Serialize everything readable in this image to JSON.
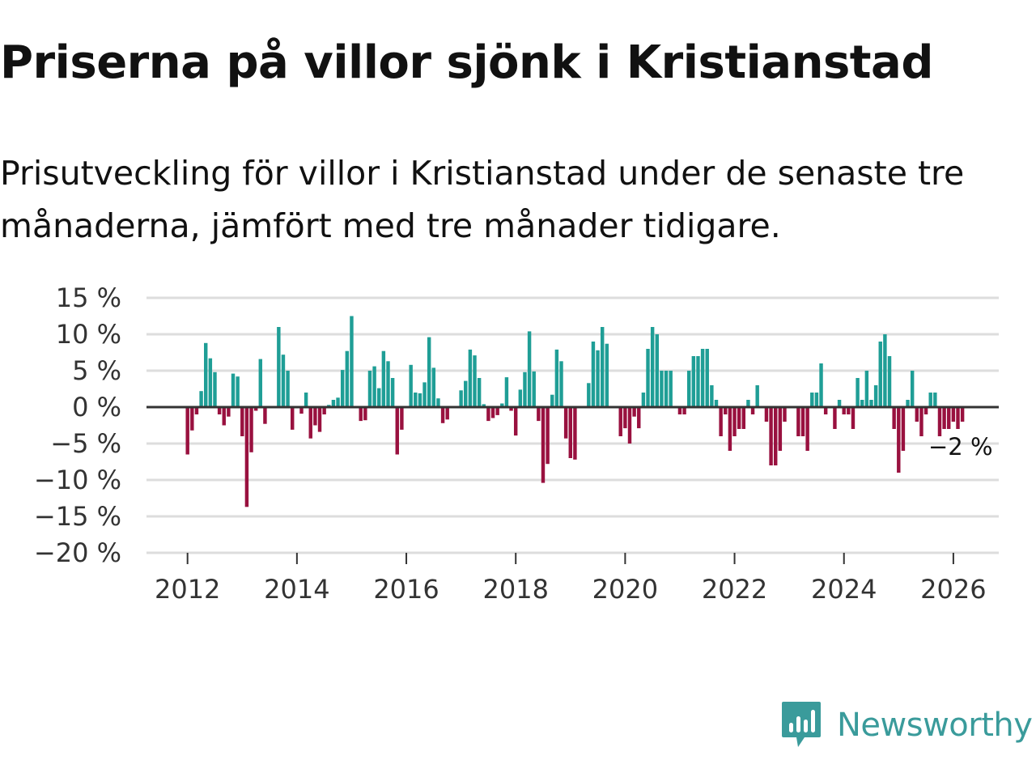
{
  "title": "Priserna på villor sjönk i Kristianstad",
  "subtitle": "Prisutveckling för villor i Kristianstad under de senaste tre månaderna, jämfört med tre månader tidigare.",
  "logo": {
    "text": "Newsworthy",
    "icon": "newsworthy-logo-icon"
  },
  "colors": {
    "positive": "#1f9e96",
    "negative": "#99113f",
    "grid": "#dddddd",
    "zero": "#333333",
    "text": "#333333",
    "brand": "#3a9b9b"
  },
  "chart_data": {
    "type": "bar",
    "title": "Priserna på villor sjönk i Kristianstad",
    "xlabel": "",
    "ylabel": "",
    "ylim": [
      -20,
      15
    ],
    "xlim": [
      2011.25,
      2026.83
    ],
    "yticks": [
      15,
      10,
      5,
      0,
      -5,
      -10,
      -15,
      -20
    ],
    "ytick_labels": [
      "15 %",
      "10 %",
      "5 %",
      "0 %",
      "−5 %",
      "−10 %",
      "−15 %",
      "−20 %"
    ],
    "xticks": [
      2012,
      2014,
      2016,
      2018,
      2020,
      2022,
      2024,
      2026
    ],
    "xtick_labels": [
      "2012",
      "2014",
      "2016",
      "2018",
      "2020",
      "2022",
      "2024",
      "2026"
    ],
    "start": 2012.0,
    "step": 0.08333,
    "values": [
      -6.5,
      -3.2,
      -1.0,
      2.2,
      8.8,
      6.7,
      4.8,
      -1.0,
      -2.5,
      -1.3,
      4.6,
      4.2,
      -4.0,
      -13.7,
      -6.2,
      -0.5,
      6.6,
      -2.3,
      0.0,
      0.0,
      11.0,
      7.2,
      5.0,
      -3.1,
      0.0,
      -0.9,
      2.0,
      -4.3,
      -2.5,
      -3.4,
      -1.0,
      0.3,
      1.0,
      1.3,
      5.1,
      7.7,
      12.5,
      0.0,
      -1.9,
      -1.8,
      5.0,
      5.6,
      2.6,
      7.7,
      6.3,
      4.0,
      -6.5,
      -3.1,
      0.0,
      5.8,
      2.0,
      1.9,
      3.4,
      9.6,
      5.4,
      1.2,
      -2.2,
      -1.7,
      0.0,
      0.0,
      2.3,
      3.6,
      7.9,
      7.1,
      4.0,
      0.4,
      -1.9,
      -1.5,
      -1.1,
      0.5,
      4.1,
      -0.5,
      -3.9,
      2.4,
      4.8,
      10.4,
      4.9,
      -1.9,
      -10.4,
      -7.8,
      1.7,
      7.9,
      6.3,
      -4.3,
      -7.0,
      -7.2,
      0.0,
      0.0,
      3.3,
      9.0,
      7.8,
      11.0,
      8.7,
      0.0,
      0.0,
      -4.0,
      -2.9,
      -5.0,
      -1.3,
      -2.9,
      2.0,
      8.0,
      11.0,
      10.0,
      5.0,
      5.0,
      5.0,
      0.0,
      -1.0,
      -1.0,
      5.0,
      7.0,
      7.0,
      8.0,
      8.0,
      3.0,
      1.0,
      -4.0,
      -1.0,
      -6.0,
      -4.0,
      -3.0,
      -3.0,
      1.0,
      -1.0,
      3.0,
      0.0,
      -2.0,
      -8.0,
      -8.0,
      -6.0,
      -2.0,
      0.0,
      0.0,
      -4.0,
      -4.0,
      -6.0,
      2.0,
      2.0,
      6.0,
      -1.0,
      0.0,
      -3.0,
      1.0,
      -1.0,
      -1.0,
      -3.0,
      4.0,
      1.0,
      5.0,
      1.0,
      3.0,
      9.0,
      10.0,
      7.0,
      -3.0,
      -9.0,
      -6.0,
      1.0,
      5.0,
      -2.0,
      -4.0,
      -1.0,
      2.0,
      2.0,
      -4.0,
      -3.0,
      -3.0,
      -2.0,
      -3.0,
      -2.0
    ],
    "last_label": "−2 %"
  }
}
